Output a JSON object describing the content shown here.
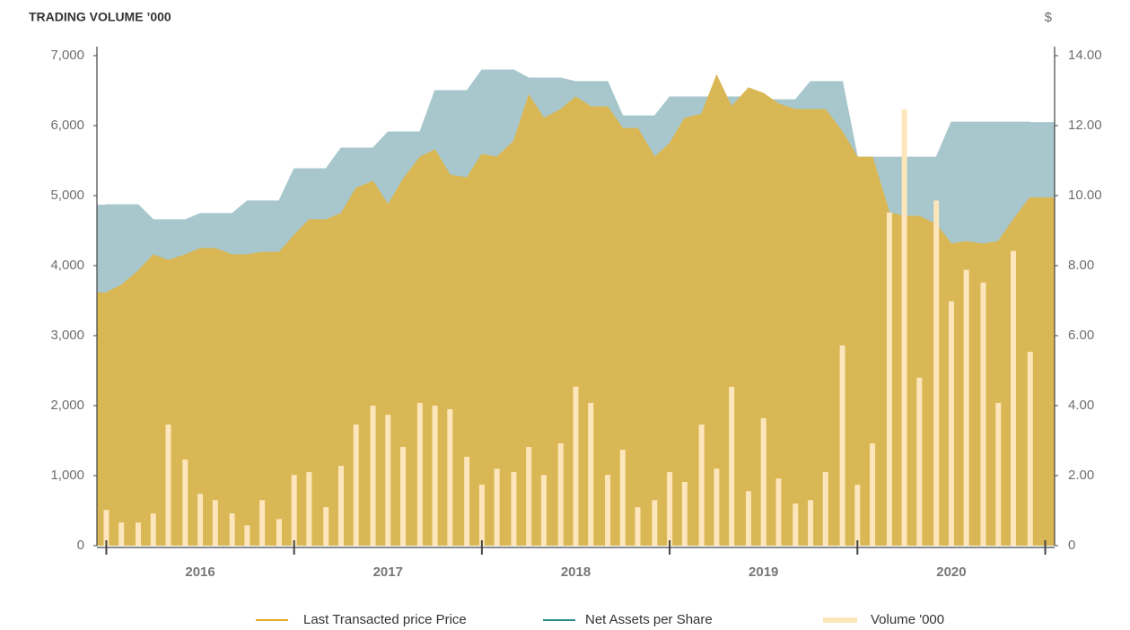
{
  "chart_data": {
    "type": "combo",
    "title": "TRADING VOLUME ’000",
    "y2_label": "$",
    "x": [
      2016.0,
      2016.08,
      2016.17,
      2016.25,
      2016.33,
      2016.42,
      2016.5,
      2016.58,
      2016.67,
      2016.75,
      2016.83,
      2016.92,
      2017.0,
      2017.08,
      2017.17,
      2017.25,
      2017.33,
      2017.42,
      2017.5,
      2017.58,
      2017.67,
      2017.75,
      2017.83,
      2017.92,
      2018.0,
      2018.08,
      2018.17,
      2018.25,
      2018.33,
      2018.42,
      2018.5,
      2018.58,
      2018.67,
      2018.75,
      2018.83,
      2018.92,
      2019.0,
      2019.08,
      2019.17,
      2019.25,
      2019.33,
      2019.42,
      2019.5,
      2019.58,
      2019.67,
      2019.75,
      2019.83,
      2019.92,
      2020.0,
      2020.08,
      2020.17,
      2020.25,
      2020.33,
      2020.42,
      2020.5,
      2020.58,
      2020.67,
      2020.75,
      2020.83,
      2020.92
    ],
    "xlim": [
      2015.95,
      2021.05
    ],
    "x_boundaries": [
      2016,
      2017,
      2018,
      2019,
      2020,
      2021
    ],
    "xticks": [
      {
        "value": 2016.5,
        "label": "2016"
      },
      {
        "value": 2017.5,
        "label": "2017"
      },
      {
        "value": 2018.5,
        "label": "2018"
      },
      {
        "value": 2019.5,
        "label": "2019"
      },
      {
        "value": 2020.5,
        "label": "2020"
      }
    ],
    "ylim": [
      0,
      7000
    ],
    "yticks": [
      0,
      {
        "value": 1000,
        "label": "1,000"
      },
      {
        "value": 2000,
        "label": "2,000"
      },
      {
        "value": 3000,
        "label": "3,000"
      },
      {
        "value": 4000,
        "label": "4,000"
      },
      {
        "value": 5000,
        "label": "5,000"
      },
      {
        "value": 6000,
        "label": "6,000"
      },
      {
        "value": 7000,
        "label": "7,000"
      }
    ],
    "y2lim": [
      0,
      14
    ],
    "y2ticks": [
      0,
      {
        "value": 2,
        "label": "2.00"
      },
      {
        "value": 4,
        "label": "4.00"
      },
      {
        "value": 6,
        "label": "6.00"
      },
      {
        "value": 8,
        "label": "8.00"
      },
      {
        "value": 10,
        "label": "10.00"
      },
      {
        "value": 12,
        "label": "12.00"
      },
      {
        "value": 14,
        "label": "14.00"
      }
    ],
    "series": [
      {
        "name": "Last Transacted price Price",
        "color": "#e2a820",
        "fill": "#d9b755",
        "kind": "area",
        "axis": "y2",
        "values": [
          7.23,
          7.44,
          7.85,
          8.31,
          8.15,
          8.31,
          8.49,
          8.49,
          8.31,
          8.31,
          8.38,
          8.38,
          8.87,
          9.31,
          9.31,
          9.49,
          10.21,
          10.41,
          9.74,
          10.46,
          11.1,
          11.31,
          10.59,
          10.51,
          11.18,
          11.1,
          11.56,
          12.87,
          12.21,
          12.46,
          12.82,
          12.54,
          12.54,
          11.92,
          11.92,
          11.1,
          11.49,
          12.21,
          12.33,
          13.44,
          12.54,
          13.08,
          12.92,
          12.62,
          12.46,
          12.46,
          12.46,
          11.82,
          11.1,
          11.1,
          9.51,
          9.41,
          9.41,
          9.18,
          8.62,
          8.69,
          8.62,
          8.69,
          9.31,
          9.95
        ]
      },
      {
        "name": "Net Assets per Share",
        "color": "#2a8a8a",
        "fill": "#a7c7cc",
        "kind": "area",
        "axis": "y2",
        "values": [
          9.74,
          9.74,
          9.74,
          9.31,
          9.31,
          9.31,
          9.49,
          9.49,
          9.49,
          9.85,
          9.85,
          9.85,
          10.77,
          10.77,
          10.77,
          11.36,
          11.36,
          11.36,
          11.82,
          11.82,
          11.82,
          13.0,
          13.0,
          13.0,
          13.59,
          13.59,
          13.59,
          13.36,
          13.36,
          13.36,
          13.26,
          13.26,
          13.26,
          12.28,
          12.28,
          12.28,
          12.82,
          12.82,
          12.82,
          12.82,
          12.82,
          12.82,
          12.74,
          12.74,
          12.74,
          13.26,
          13.26,
          13.26,
          11.1,
          11.1,
          11.1,
          11.1,
          11.1,
          11.1,
          12.1,
          12.1,
          12.1,
          12.1,
          12.1,
          12.1
        ]
      },
      {
        "name": "Volume '000",
        "color": "#fde6bb",
        "kind": "bar",
        "values": [
          510,
          330,
          330,
          460,
          1730,
          1230,
          740,
          650,
          460,
          290,
          650,
          380,
          1010,
          1050,
          550,
          1140,
          1730,
          2000,
          1870,
          1410,
          2040,
          2000,
          1950,
          1270,
          870,
          1100,
          1050,
          1410,
          1010,
          1460,
          2270,
          2040,
          1010,
          1370,
          550,
          650,
          1050,
          910,
          1730,
          1100,
          2270,
          780,
          1820,
          960,
          600,
          650,
          1050,
          2860,
          870,
          1460,
          4760,
          6230,
          2400,
          4930,
          3490,
          3940,
          3760,
          2040,
          4210,
          2770
        ]
      }
    ]
  }
}
